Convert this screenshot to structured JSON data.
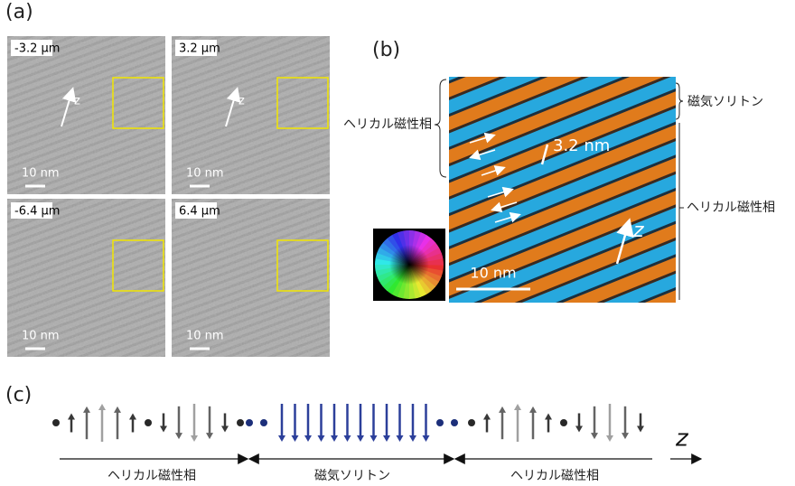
{
  "panel_a": {
    "label": "(a)",
    "images": [
      {
        "defocus": "-3.2 μm",
        "scale_bar": "10 nm",
        "axis": "z"
      },
      {
        "defocus": "3.2 μm",
        "scale_bar": "10 nm",
        "axis": "z"
      },
      {
        "defocus": "-6.4 μm",
        "scale_bar": "10 nm"
      },
      {
        "defocus": "6.4 μm",
        "scale_bar": "10 nm"
      }
    ]
  },
  "panel_b": {
    "label": "(b)",
    "left_label": "ヘリカル磁性相",
    "right_top_label": "磁気ソリトン",
    "right_bottom_label": "ヘリカル磁性相",
    "period": "3.2 nm",
    "axis": "z",
    "scale_bar": "10 nm"
  },
  "panel_c": {
    "label": "(c)",
    "segments": [
      "ヘリカル磁性相",
      "磁気ソリトン",
      "ヘリカル磁性相"
    ],
    "axis": "z"
  }
}
